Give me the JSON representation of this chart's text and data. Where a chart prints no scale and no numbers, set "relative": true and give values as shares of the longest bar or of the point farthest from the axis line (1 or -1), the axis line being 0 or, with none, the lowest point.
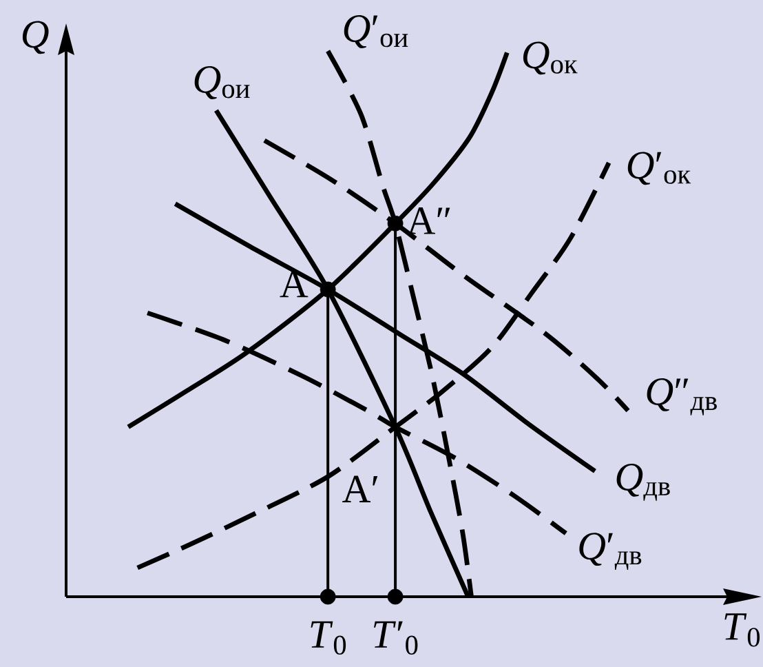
{
  "chart_data": {
    "type": "line",
    "relative": true,
    "xlabel": "*T*$_{0}$",
    "ylabel": "*Q*",
    "xlim": [
      0,
      1
    ],
    "xticks": [
      {
        "value": 0.396,
        "label": "*T*$_{0}$"
      },
      {
        "value": 0.498,
        "label": "*T*′$_{0}$"
      }
    ],
    "series": [
      {
        "name": "*Q*$_{ои}$",
        "color": "#000000",
        "line_style": "solid",
        "x": [
          0.227,
          0.31,
          0.396,
          0.498,
          0.552,
          0.608
        ],
        "values": [
          0.891,
          0.73,
          0.563,
          0.311,
          0.154,
          0
        ]
      },
      {
        "name": "*Q*′$_{ои}$",
        "color": "#000000",
        "line_style": "dashed",
        "x": [
          0.396,
          0.446,
          0.479,
          0.498,
          0.525,
          0.554,
          0.579,
          0.6,
          0.613
        ],
        "values": [
          1.0,
          0.884,
          0.753,
          0.684,
          0.551,
          0.404,
          0.253,
          0.116,
          0
        ]
      },
      {
        "name": "*Q*$_{ок}$",
        "color": "#000000",
        "line_style": "solid",
        "x": [
          0.094,
          0.181,
          0.275,
          0.396,
          0.498,
          0.556,
          0.61,
          0.644,
          0.667
        ],
        "values": [
          0.311,
          0.376,
          0.449,
          0.563,
          0.684,
          0.758,
          0.841,
          0.924,
          0.997
        ]
      },
      {
        "name": "*Q*′$_{ок}$",
        "color": "#000000",
        "line_style": "dashed",
        "x": [
          0.108,
          0.188,
          0.285,
          0.396,
          0.498,
          0.567,
          0.644,
          0.704,
          0.763,
          0.821
        ],
        "values": [
          0.053,
          0.096,
          0.152,
          0.22,
          0.311,
          0.374,
          0.457,
          0.556,
          0.657,
          0.795
        ]
      },
      {
        "name": "*Q*$_{дв}$",
        "color": "#000000",
        "line_style": "solid",
        "x": [
          0.165,
          0.279,
          0.396,
          0.506,
          0.602,
          0.7,
          0.8
        ],
        "values": [
          0.72,
          0.641,
          0.563,
          0.48,
          0.407,
          0.316,
          0.23
        ]
      },
      {
        "name": "*Q*′$_{дв}$",
        "color": "#000000",
        "line_style": "dashed",
        "x": [
          0.123,
          0.24,
          0.358,
          0.456,
          0.498,
          0.59,
          0.679,
          0.756
        ],
        "values": [
          0.52,
          0.47,
          0.404,
          0.341,
          0.311,
          0.253,
          0.184,
          0.116
        ]
      },
      {
        "name": "*Q*″$_{дв}$",
        "color": "#000000",
        "line_style": "dashed",
        "x": [
          0.3,
          0.4,
          0.498,
          0.602,
          0.725,
          0.804,
          0.85
        ],
        "values": [
          0.836,
          0.765,
          0.684,
          0.588,
          0.482,
          0.399,
          0.341
        ]
      },
      {
        "color": "#000000",
        "line_style": "solid",
        "x": [
          0.396,
          0.396
        ],
        "values": [
          0,
          0.563
        ]
      },
      {
        "color": "#000000",
        "line_style": "solid",
        "x": [
          0.498,
          0.498
        ],
        "values": [
          0,
          0.684
        ]
      },
      {
        "type": "scatter",
        "color": "#000000",
        "marker": "circle",
        "x": [
          0.396,
          0.498,
          0.396,
          0.498
        ],
        "values": [
          0.563,
          0.684,
          0,
          0
        ]
      }
    ],
    "annotations": [
      "A",
      "A″",
      "A′"
    ]
  }
}
